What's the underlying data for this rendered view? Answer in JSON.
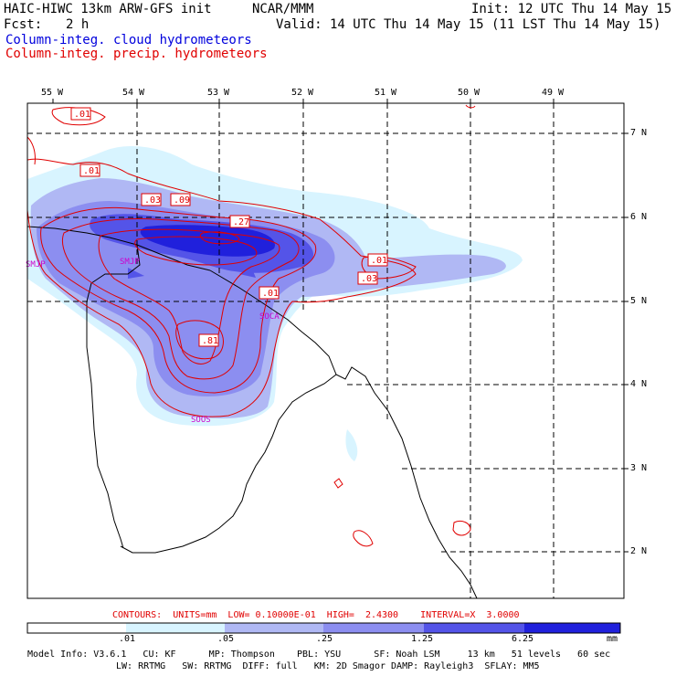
{
  "header": {
    "title": "HAIC-HIWC 13km ARW-GFS init",
    "org": "NCAR/MMM",
    "init": "Init: 12 UTC Thu 14 May 15",
    "fcst_label": "Fcst:",
    "fcst_value": "2 h",
    "valid": "Valid: 14 UTC Thu 14 May 15 (11 LST Thu 14 May 15)"
  },
  "legend": {
    "cloud": "Column-integ. cloud hydrometeors",
    "precip": "Column-integ. precip. hydrometeors",
    "cloud_color": "#0000dd",
    "precip_color": "#e00000"
  },
  "axes": {
    "lon_labels": [
      "55 W",
      "54 W",
      "53 W",
      "52 W",
      "51 W",
      "50 W",
      "49 W"
    ],
    "lat_labels": [
      "7 N",
      "6 N",
      "5 N",
      "4 N",
      "3 N",
      "2 N"
    ]
  },
  "stations": [
    "SMJP",
    "SOCA",
    "SOOS",
    "SMJP"
  ],
  "contour_labels": [
    ".01",
    ".01",
    ".03",
    ".09",
    ".27",
    ".01",
    ".01",
    ".03",
    ".81"
  ],
  "contours_info": "CONTOURS:  UNITS=mm  LOW= 0.10000E-01  HIGH=  2.4300    INTERVAL=X  3.0000",
  "colorbar": {
    "labels": [
      ".01",
      ".05",
      ".25",
      "1.25",
      "6.25",
      "mm"
    ],
    "colors": [
      "#ffffff",
      "#d8f4ff",
      "#b0b8f4",
      "#8c8ef0",
      "#5454e8",
      "#2020dc"
    ]
  },
  "model_info": {
    "line1": "Model Info: V3.6.1   CU: KF      MP: Thompson    PBL: YSU      SF: Noah LSM     13 km   51 levels   60 sec",
    "line2": "LW: RRTMG   SW: RRTMG  DIFF: full   KM: 2D Smagor DAMP: Rayleigh3  SFLAY: MM5"
  }
}
